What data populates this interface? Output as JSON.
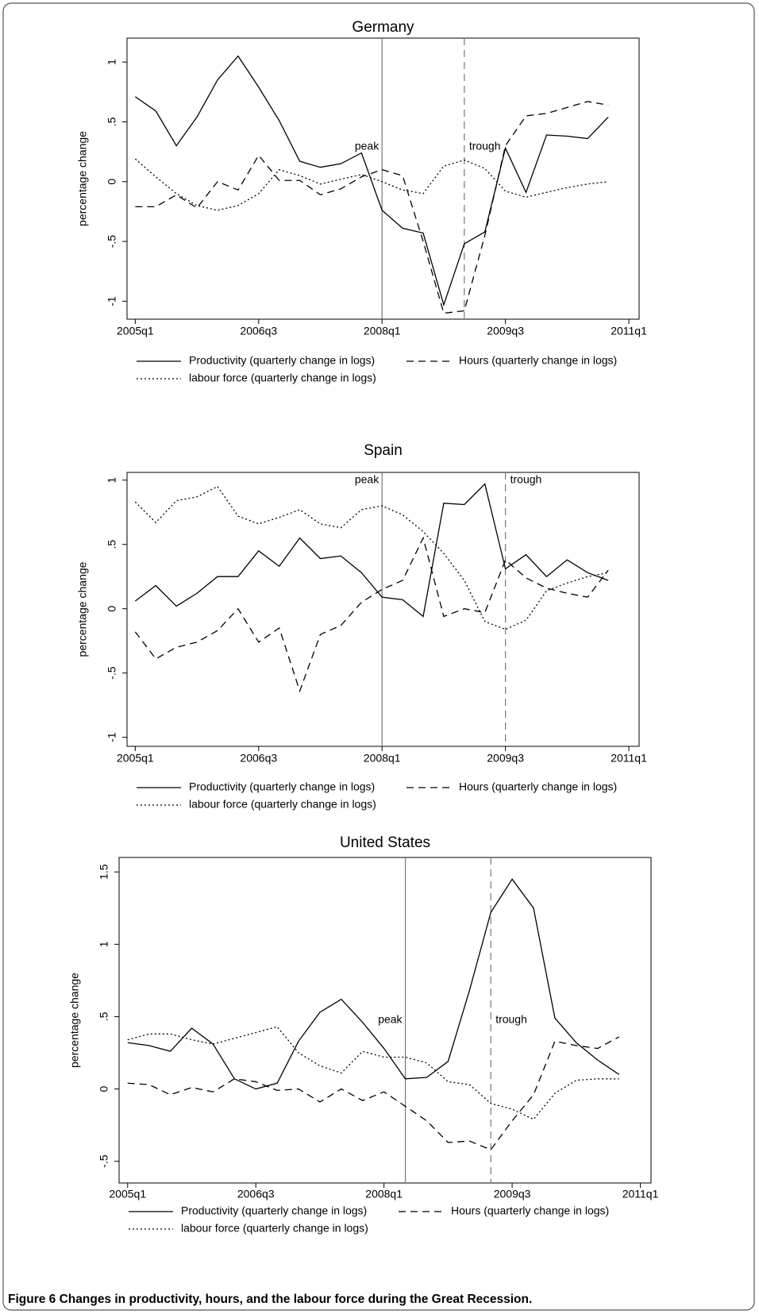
{
  "chart_data": [
    {
      "type": "line",
      "title": "Germany",
      "ylabel": "percentage change",
      "x": [
        180,
        181,
        182,
        183,
        184,
        185,
        186,
        187,
        188,
        189,
        190,
        191,
        192,
        193,
        194,
        195,
        196,
        197,
        198,
        199,
        200,
        201,
        202,
        203
      ],
      "xlim": [
        179.6,
        204.5
      ],
      "xticks": [
        {
          "value": 180,
          "label": "2005q1"
        },
        {
          "value": 186,
          "label": "2006q3"
        },
        {
          "value": 192,
          "label": "2008q1"
        },
        {
          "value": 198,
          "label": "2009q3"
        },
        {
          "value": 204,
          "label": "2011q1"
        }
      ],
      "ylim": [
        -1.15,
        1.2
      ],
      "yticks": [
        -1,
        {
          "value": -0.5,
          "label": "-.5"
        },
        0,
        {
          "value": 0.5,
          "label": ".5"
        },
        1
      ],
      "series": [
        {
          "name": "Productivity (quarterly change in logs)",
          "color": "#000000",
          "dash": "solid",
          "values": [
            0.71,
            0.59,
            0.3,
            0.54,
            0.85,
            1.05,
            0.79,
            0.51,
            0.17,
            0.12,
            0.15,
            0.24,
            -0.24,
            -0.39,
            -0.43,
            -1.03,
            -0.52,
            -0.42,
            0.28,
            -0.09,
            0.39,
            0.38,
            0.36,
            0.54
          ]
        },
        {
          "name": "Hours (quarterly change in logs)",
          "color": "#000000",
          "dash": "dashed",
          "values": [
            -0.21,
            -0.21,
            -0.11,
            -0.22,
            0.0,
            -0.07,
            0.22,
            0.01,
            0.01,
            -0.11,
            -0.06,
            0.04,
            0.1,
            0.05,
            -0.5,
            -1.1,
            -1.08,
            -0.45,
            0.3,
            0.55,
            0.57,
            0.62,
            0.67,
            0.64
          ]
        },
        {
          "name": "labour force (quarterly change in logs)",
          "color": "#000000",
          "dash": "dotted",
          "values": [
            0.19,
            0.04,
            -0.1,
            -0.2,
            -0.24,
            -0.2,
            -0.1,
            0.1,
            0.05,
            -0.02,
            0.02,
            0.06,
            0.0,
            -0.07,
            -0.1,
            0.13,
            0.18,
            0.11,
            -0.08,
            -0.13,
            -0.09,
            -0.05,
            -0.02,
            0.0
          ]
        }
      ],
      "annotations": [
        {
          "text": "peak",
          "x": 192,
          "line": "solid"
        },
        {
          "text": "trough",
          "x": 196,
          "line": "dashed"
        }
      ],
      "legend": "bottom"
    },
    {
      "type": "line",
      "title": "Spain",
      "ylabel": "percentage change",
      "x": [
        180,
        181,
        182,
        183,
        184,
        185,
        186,
        187,
        188,
        189,
        190,
        191,
        192,
        193,
        194,
        195,
        196,
        197,
        198,
        199,
        200,
        201,
        202,
        203
      ],
      "xlim": [
        179.6,
        204.5
      ],
      "xticks": [
        {
          "value": 180,
          "label": "2005q1"
        },
        {
          "value": 186,
          "label": "2006q3"
        },
        {
          "value": 192,
          "label": "2008q1"
        },
        {
          "value": 198,
          "label": "2009q3"
        },
        {
          "value": 204,
          "label": "2011q1"
        }
      ],
      "ylim": [
        -1.07,
        1.06
      ],
      "yticks": [
        -1,
        {
          "value": -0.5,
          "label": "-.5"
        },
        0,
        {
          "value": 0.5,
          "label": ".5"
        },
        1
      ],
      "series": [
        {
          "name": "Productivity (quarterly change in logs)",
          "color": "#000000",
          "dash": "solid",
          "values": [
            0.06,
            0.18,
            0.02,
            0.12,
            0.25,
            0.25,
            0.45,
            0.33,
            0.55,
            0.39,
            0.41,
            0.28,
            0.09,
            0.07,
            -0.06,
            0.82,
            0.81,
            0.97,
            0.31,
            0.42,
            0.25,
            0.38,
            0.28,
            0.22
          ]
        },
        {
          "name": "Hours (quarterly change in logs)",
          "color": "#000000",
          "dash": "dashed",
          "values": [
            -0.18,
            -0.39,
            -0.3,
            -0.26,
            -0.17,
            0.0,
            -0.26,
            -0.15,
            -0.64,
            -0.2,
            -0.13,
            0.05,
            0.15,
            0.22,
            0.55,
            -0.06,
            0.0,
            -0.03,
            0.38,
            0.24,
            0.16,
            0.12,
            0.09,
            0.3
          ]
        },
        {
          "name": "labour force (quarterly change in logs)",
          "color": "#000000",
          "dash": "dotted",
          "values": [
            0.83,
            0.67,
            0.84,
            0.87,
            0.95,
            0.72,
            0.66,
            0.71,
            0.77,
            0.66,
            0.63,
            0.77,
            0.8,
            0.73,
            0.6,
            0.43,
            0.22,
            -0.1,
            -0.16,
            -0.09,
            0.14,
            0.2,
            0.25,
            0.28
          ]
        }
      ],
      "annotations": [
        {
          "text": "peak",
          "x": 192,
          "line": "solid"
        },
        {
          "text": "trough",
          "x": 198,
          "line": "dashed"
        }
      ],
      "legend": "bottom"
    },
    {
      "type": "line",
      "title": "United States",
      "ylabel": "percentage change",
      "x": [
        180,
        181,
        182,
        183,
        184,
        185,
        186,
        187,
        188,
        189,
        190,
        191,
        192,
        193,
        194,
        195,
        196,
        197,
        198,
        199,
        200,
        201,
        202,
        203
      ],
      "xlim": [
        179.6,
        204.5
      ],
      "xticks": [
        {
          "value": 180,
          "label": "2005q1"
        },
        {
          "value": 186,
          "label": "2006q3"
        },
        {
          "value": 192,
          "label": "2008q1"
        },
        {
          "value": 198,
          "label": "2009q3"
        },
        {
          "value": 204,
          "label": "2011q1"
        }
      ],
      "ylim": [
        -0.65,
        1.6
      ],
      "yticks": [
        {
          "value": -0.5,
          "label": "-.5"
        },
        0,
        {
          "value": 0.5,
          "label": ".5"
        },
        1,
        1.5
      ],
      "series": [
        {
          "name": "Productivity (quarterly change in logs)",
          "color": "#000000",
          "dash": "solid",
          "values": [
            0.32,
            0.3,
            0.26,
            0.42,
            0.31,
            0.07,
            0.0,
            0.04,
            0.33,
            0.53,
            0.62,
            0.46,
            0.28,
            0.07,
            0.08,
            0.19,
            0.68,
            1.22,
            1.45,
            1.25,
            0.49,
            0.32,
            0.2,
            0.1
          ]
        },
        {
          "name": "Hours (quarterly change in logs)",
          "color": "#000000",
          "dash": "dashed",
          "values": [
            0.04,
            0.03,
            -0.04,
            0.01,
            -0.02,
            0.07,
            0.05,
            -0.01,
            0.0,
            -0.09,
            0.0,
            -0.08,
            -0.02,
            -0.12,
            -0.22,
            -0.37,
            -0.36,
            -0.42,
            -0.22,
            -0.04,
            0.33,
            0.3,
            0.28,
            0.36
          ]
        },
        {
          "name": "labour force (quarterly change in logs)",
          "color": "#000000",
          "dash": "dotted",
          "values": [
            0.34,
            0.38,
            0.38,
            0.34,
            0.31,
            0.35,
            0.39,
            0.43,
            0.25,
            0.16,
            0.11,
            0.26,
            0.22,
            0.22,
            0.18,
            0.05,
            0.03,
            -0.1,
            -0.14,
            -0.21,
            -0.03,
            0.06,
            0.07,
            0.07
          ]
        }
      ],
      "annotations": [
        {
          "text": "peak",
          "x": 193,
          "line": "solid"
        },
        {
          "text": "trough",
          "x": 197,
          "line": "dashed"
        }
      ],
      "legend": "bottom"
    }
  ],
  "caption": {
    "label": "Figure 6",
    "text": "Changes in productivity, hours, and the labour force during the Great Recession."
  }
}
